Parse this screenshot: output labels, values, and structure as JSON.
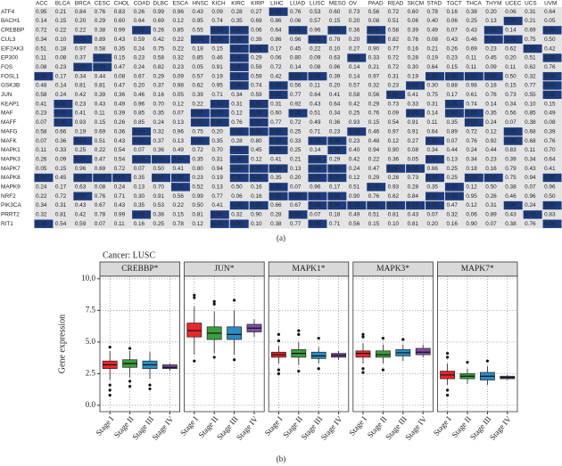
{
  "heatmap": {
    "label": "(a)",
    "columns": [
      "ACC",
      "BLCA",
      "BRCA",
      "CESC",
      "CHOL",
      "COAD",
      "DLBC",
      "ESCA",
      "HNSC",
      "KICH",
      "KIRC",
      "KIRP",
      "LIHC",
      "LUAD",
      "LUSC",
      "MESO",
      "OV",
      "PAAD",
      "READ",
      "SKCM",
      "STAD",
      "TGCT",
      "THCA",
      "THYM",
      "UCEC",
      "UCS",
      "UVM"
    ],
    "rows": [
      {
        "gene": "ATF4",
        "values": [
          "0.95",
          "0.21",
          "0.84",
          "0.76",
          "0.83",
          "0.26",
          "0.99",
          "0.96",
          "0.43",
          "0.09",
          "0.28",
          "0.27",
          "0.00",
          "0.76",
          "0.53",
          "0.60",
          "0.73",
          "0.56",
          "0.72",
          "0.60",
          "0.78",
          "0.16",
          "0.38",
          "0.20",
          "0.06",
          "0.31",
          "0.64"
        ]
      },
      {
        "gene": "BACH1",
        "values": [
          "0.14",
          "0.15",
          "0.20",
          "0.29",
          "0.60",
          "0.64",
          "0.69",
          "0.12",
          "0.95",
          "0.74",
          "0.35",
          "0.69",
          "0.86",
          "0.06",
          "0.57",
          "0.15",
          "0.20",
          "0.08",
          "0.51",
          "0.06",
          "0.40",
          "0.06",
          "0.25",
          "0.13",
          "0.00",
          "0.21",
          "0.05"
        ]
      },
      {
        "gene": "CREBBP",
        "values": [
          "0.72",
          "0.22",
          "0.22",
          "0.38",
          "0.99",
          "0.02",
          "0.26",
          "0.85",
          "0.55",
          "0.03",
          "0.00",
          "0.06",
          "0.64",
          "0.00",
          "0.96",
          "0.01",
          "0.36",
          "0.00",
          "0.58",
          "0.39",
          "0.49",
          "0.07",
          "0.43",
          "0.00",
          "0.14",
          "0.69",
          "0.00"
        ]
      },
      {
        "gene": "CUL3",
        "values": [
          "0.34",
          "0.10",
          "0.03",
          "0.89",
          "0.43",
          "0.59",
          "0.42",
          "0.22",
          "0.04",
          "0.00",
          "0.00",
          "0.39",
          "0.86",
          "0.96",
          "0.02",
          "0.78",
          "0.20",
          "0.00",
          "0.82",
          "0.76",
          "0.08",
          "0.43",
          "0.46",
          "0.00",
          "0.00",
          "0.75",
          "0.50"
        ]
      },
      {
        "gene": "EIF2AK3",
        "values": [
          "0.51",
          "0.18",
          "0.97",
          "0.58",
          "0.35",
          "0.24",
          "0.75",
          "0.22",
          "0.18",
          "0.15",
          "0.00",
          "0.00",
          "0.17",
          "0.45",
          "0.22",
          "0.10",
          "0.27",
          "0.90",
          "0.77",
          "0.16",
          "0.21",
          "0.26",
          "0.69",
          "0.23",
          "0.62",
          "0.00",
          "0.42"
        ]
      },
      {
        "gene": "EP300",
        "values": [
          "0.11",
          "0.08",
          "0.37",
          "0.02",
          "0.15",
          "0.23",
          "0.58",
          "0.32",
          "0.85",
          "0.46",
          "0.00",
          "0.29",
          "0.06",
          "0.80",
          "0.09",
          "0.63",
          "0.00",
          "0.33",
          "0.72",
          "0.28",
          "0.19",
          "0.23",
          "0.11",
          "0.45",
          "0.20",
          "0.51",
          "0.00"
        ]
      },
      {
        "gene": "FOS",
        "values": [
          "0.08",
          "0.23",
          "0.00",
          "0.00",
          "0.47",
          "0.24",
          "0.82",
          "0.23",
          "0.05",
          "0.91",
          "0.00",
          "0.59",
          "0.72",
          "0.14",
          "0.08",
          "0.96",
          "0.14",
          "0.21",
          "0.72",
          "0.30",
          "0.64",
          "0.15",
          "0.11",
          "0.09",
          "0.11",
          "0.62",
          "0.76"
        ]
      },
      {
        "gene": "FOSL1",
        "values": [
          "0.00",
          "0.17",
          "0.34",
          "0.44",
          "0.08",
          "0.67",
          "0.29",
          "0.09",
          "0.57",
          "0.19",
          "0.00",
          "0.59",
          "0.42",
          "0.00",
          "0.00",
          "0.39",
          "0.14",
          "0.97",
          "0.31",
          "0.19",
          "0.00",
          "0.00",
          "0.00",
          "0.00",
          "0.50",
          "0.32",
          "0.00"
        ]
      },
      {
        "gene": "GSK3B",
        "values": [
          "0.48",
          "0.14",
          "0.81",
          "0.81",
          "0.47",
          "0.20",
          "0.37",
          "0.98",
          "0.62",
          "0.95",
          "0.00",
          "0.74",
          "0.00",
          "0.56",
          "0.11",
          "0.20",
          "0.57",
          "0.32",
          "0.23",
          "0.00",
          "0.30",
          "0.88",
          "0.98",
          "0.18",
          "0.15",
          "0.77",
          "0.00"
        ]
      },
      {
        "gene": "JUN",
        "values": [
          "0.58",
          "0.24",
          "0.42",
          "0.39",
          "0.36",
          "0.46",
          "0.16",
          "0.05",
          "0.39",
          "0.71",
          "0.34",
          "0.59",
          "0.00",
          "0.77",
          "0.64",
          "0.41",
          "0.58",
          "0.56",
          "0.00",
          "0.41",
          "0.75",
          "0.17",
          "0.61",
          "0.76",
          "0.73",
          "0.55",
          "0.00"
        ]
      },
      {
        "gene": "KEAP1",
        "values": [
          "0.41",
          "0.00",
          "0.23",
          "0.43",
          "0.49",
          "0.96",
          "0.70",
          "0.12",
          "0.22",
          "0.00",
          "0.31",
          "0.00",
          "0.31",
          "0.92",
          "0.43",
          "0.64",
          "0.42",
          "0.29",
          "0.73",
          "0.33",
          "0.31",
          "0.00",
          "0.74",
          "0.14",
          "0.34",
          "0.10",
          "0.15"
        ]
      },
      {
        "gene": "MAF",
        "values": [
          "0.23",
          "0.00",
          "0.41",
          "0.11",
          "0.39",
          "0.85",
          "0.35",
          "0.07",
          "0.00",
          "0.00",
          "0.12",
          "0.00",
          "0.60",
          "0.00",
          "0.51",
          "0.34",
          "0.25",
          "0.76",
          "0.09",
          "0.00",
          "0.14",
          "0.00",
          "0.00",
          "0.35",
          "0.56",
          "0.85",
          "0.49"
        ]
      },
      {
        "gene": "MAFF",
        "values": [
          "0.07",
          "0.00",
          "0.93",
          "0.15",
          "0.26",
          "0.85",
          "0.24",
          "0.13",
          "0.00",
          "0.00",
          "0.76",
          "0.00",
          "0.77",
          "0.72",
          "0.49",
          "0.36",
          "0.93",
          "0.15",
          "0.54",
          "0.91",
          "0.11",
          "0.35",
          "0.00",
          "0.24",
          "0.07",
          "0.38",
          "0.08"
        ]
      },
      {
        "gene": "MAFG",
        "values": [
          "0.58",
          "0.66",
          "0.19",
          "0.69",
          "0.36",
          "0.00",
          "0.32",
          "0.96",
          "0.75",
          "0.20",
          "0.00",
          "0.00",
          "0.00",
          "0.25",
          "0.71",
          "0.23",
          "0.00",
          "0.46",
          "0.97",
          "0.91",
          "0.64",
          "0.89",
          "0.72",
          "0.12",
          "0.00",
          "0.68",
          "0.39"
        ]
      },
      {
        "gene": "MAFK",
        "values": [
          "0.07",
          "0.36",
          "0.03",
          "0.51",
          "0.43",
          "0.00",
          "0.37",
          "0.13",
          "0.00",
          "0.35",
          "0.28",
          "0.80",
          "0.00",
          "0.33",
          "0.00",
          "0.00",
          "0.23",
          "0.48",
          "0.12",
          "0.27",
          "0.00",
          "0.07",
          "0.76",
          "0.92",
          "0.00",
          "0.68",
          "0.76"
        ]
      },
      {
        "gene": "MAPK1",
        "values": [
          "0.11",
          "0.33",
          "0.25",
          "0.22",
          "0.54",
          "0.07",
          "0.36",
          "0.49",
          "0.72",
          "0.70",
          "0.00",
          "0.45",
          "0.00",
          "0.25",
          "0.14",
          "0.00",
          "0.40",
          "0.94",
          "0.90",
          "0.08",
          "0.34",
          "0.44",
          "0.24",
          "0.44",
          "0.83",
          "0.11",
          "0.70"
        ]
      },
      {
        "gene": "MAPK3",
        "values": [
          "0.26",
          "0.09",
          "0.00",
          "0.47",
          "0.54",
          "0.00",
          "0.00",
          "0.00",
          "0.35",
          "0.31",
          "0.00",
          "0.12",
          "0.41",
          "0.21",
          "0.00",
          "0.29",
          "0.42",
          "0.22",
          "0.36",
          "0.05",
          "0.00",
          "0.13",
          "0.34",
          "0.23",
          "0.39",
          "0.34",
          "0.64"
        ]
      },
      {
        "gene": "MAPK7",
        "values": [
          "0.05",
          "0.15",
          "0.96",
          "0.69",
          "0.72",
          "0.07",
          "0.50",
          "0.41",
          "0.80",
          "0.94",
          "0.00",
          "0.00",
          "0.00",
          "0.13",
          "0.00",
          "0.00",
          "0.24",
          "0.47",
          "0.00",
          "0.00",
          "0.66",
          "0.25",
          "0.18",
          "0.16",
          "0.79",
          "0.43",
          "0.41"
        ]
      },
      {
        "gene": "MAPK8",
        "values": [
          "0.00",
          "0.45",
          "0.00",
          "0.00",
          "0.00",
          "0.35",
          "0.00",
          "0.00",
          "0.23",
          "0.19",
          "0.00",
          "0.00",
          "0.35",
          "0.20",
          "0.00",
          "0.00",
          "0.12",
          "0.29",
          "0.28",
          "0.73",
          "0.00",
          "0.25",
          "0.00",
          "0.00",
          "0.75",
          "0.94",
          "0.00"
        ]
      },
      {
        "gene": "MAPK9",
        "values": [
          "0.24",
          "0.17",
          "0.63",
          "0.08",
          "0.24",
          "0.13",
          "0.70",
          "0.02",
          "0.52",
          "0.13",
          "0.50",
          "0.16",
          "0.00",
          "0.07",
          "0.96",
          "0.17",
          "0.51",
          "0.00",
          "0.93",
          "0.28",
          "0.35",
          "0.00",
          "0.12",
          "0.50",
          "0.38",
          "0.07",
          "0.96"
        ]
      },
      {
        "gene": "NRF2",
        "values": [
          "0.22",
          "0.72",
          "0.00",
          "0.76",
          "0.71",
          "0.30",
          "0.91",
          "0.56",
          "0.99",
          "0.77",
          "0.06",
          "0.16",
          "0.00",
          "0.00",
          "0.00",
          "0.00",
          "0.90",
          "0.76",
          "0.62",
          "0.84",
          "0.00",
          "0.00",
          "0.95",
          "0.26",
          "0.46",
          "0.96",
          "0.50"
        ]
      },
      {
        "gene": "PIK3CA",
        "values": [
          "0.34",
          "0.31",
          "0.43",
          "0.67",
          "0.43",
          "0.35",
          "0.53",
          "0.22",
          "0.50",
          "0.41",
          "0.00",
          "0.00",
          "0.66",
          "0.67",
          "0.00",
          "0.00",
          "0.00",
          "0.02",
          "0.00",
          "0.00",
          "0.00",
          "0.47",
          "0.12",
          "0.31",
          "0.00",
          "0.24",
          "0.00"
        ]
      },
      {
        "gene": "PRRT2",
        "values": [
          "0.32",
          "0.81",
          "0.42",
          "0.78",
          "0.99",
          "0.00",
          "0.38",
          "0.15",
          "0.81",
          "0.00",
          "0.32",
          "0.90",
          "0.28",
          "0.00",
          "0.07",
          "0.18",
          "0.49",
          "0.51",
          "0.81",
          "0.43",
          "0.07",
          "0.32",
          "0.06",
          "0.89",
          "0.43",
          "0.00",
          "0.83"
        ]
      },
      {
        "gene": "RIT1",
        "values": [
          "0.00",
          "0.54",
          "0.59",
          "0.07",
          "0.11",
          "0.16",
          "0.25",
          "0.78",
          "0.12",
          "0.00",
          "0.00",
          "0.10",
          "0.38",
          "0.77",
          "0.00",
          "0.71",
          "0.56",
          "0.15",
          "0.10",
          "0.81",
          "0.20",
          "0.16",
          "0.90",
          "0.07",
          "0.38",
          "0.76",
          "0.00"
        ]
      }
    ]
  },
  "chart_data": {
    "type": "box",
    "title": "Cancer: LUSC",
    "ylabel": "Gene expression",
    "panel_label": "(b)",
    "ylim": [
      -0.5,
      10.2
    ],
    "yticks": [
      {
        "value": 0,
        "label": "0.0"
      },
      {
        "value": 2.5,
        "label": "2.5"
      },
      {
        "value": 5,
        "label": "5.0"
      },
      {
        "value": 7.5,
        "label": "7.5"
      },
      {
        "value": 10,
        "label": "10.0"
      }
    ],
    "grid": true,
    "categories": [
      "Stage I",
      "Stage II",
      "Stage III",
      "Stage IV"
    ],
    "colors": [
      "#e8262b",
      "#3b9e3b",
      "#2b8cc4",
      "#7d4fa6"
    ],
    "facets": [
      {
        "title": "CREBBP*",
        "boxes": [
          {
            "min": 2.0,
            "q1": 2.9,
            "median": 3.2,
            "q3": 3.5,
            "max": 4.3,
            "outliers": [
              1.6,
              1.2,
              0.8,
              4.6
            ]
          },
          {
            "min": 2.2,
            "q1": 3.0,
            "median": 3.3,
            "q3": 3.6,
            "max": 4.3,
            "outliers": [
              1.9,
              1.5,
              4.5
            ]
          },
          {
            "min": 2.1,
            "q1": 2.9,
            "median": 3.2,
            "q3": 3.5,
            "max": 4.2,
            "outliers": [
              1.6,
              1.3
            ]
          },
          {
            "min": 2.7,
            "q1": 2.9,
            "median": 3.0,
            "q3": 3.2,
            "max": 3.3,
            "outliers": []
          }
        ]
      },
      {
        "title": "JUN*",
        "boxes": [
          {
            "min": 4.0,
            "q1": 5.4,
            "median": 5.9,
            "q3": 6.5,
            "max": 7.8,
            "outliers": [
              8.7,
              8.5,
              3.5
            ]
          },
          {
            "min": 4.1,
            "q1": 5.2,
            "median": 5.7,
            "q3": 6.2,
            "max": 7.4,
            "outliers": [
              8.2,
              8.0,
              3.8
            ]
          },
          {
            "min": 4.0,
            "q1": 5.2,
            "median": 5.6,
            "q3": 6.2,
            "max": 7.5,
            "outliers": [
              8.3,
              3.6
            ]
          },
          {
            "min": 5.4,
            "q1": 5.8,
            "median": 6.1,
            "q3": 6.4,
            "max": 6.8,
            "outliers": []
          }
        ]
      },
      {
        "title": "MAPK1*",
        "boxes": [
          {
            "min": 3.3,
            "q1": 3.8,
            "median": 4.0,
            "q3": 4.2,
            "max": 4.7,
            "outliers": [
              5.1,
              5.6,
              2.8,
              2.5
            ]
          },
          {
            "min": 3.2,
            "q1": 3.8,
            "median": 4.1,
            "q3": 4.4,
            "max": 5.0,
            "outliers": [
              5.6,
              5.9,
              2.7
            ]
          },
          {
            "min": 3.3,
            "q1": 3.7,
            "median": 3.9,
            "q3": 4.2,
            "max": 4.6,
            "outliers": [
              5.3,
              2.9
            ]
          },
          {
            "min": 3.6,
            "q1": 3.8,
            "median": 3.95,
            "q3": 4.1,
            "max": 4.3,
            "outliers": []
          }
        ]
      },
      {
        "title": "MAPK3*",
        "boxes": [
          {
            "min": 3.3,
            "q1": 3.8,
            "median": 4.1,
            "q3": 4.3,
            "max": 4.9,
            "outliers": [
              5.4,
              5.6,
              2.9,
              2.6
            ]
          },
          {
            "min": 3.3,
            "q1": 3.8,
            "median": 4.0,
            "q3": 4.3,
            "max": 4.8,
            "outliers": [
              5.3,
              2.8
            ]
          },
          {
            "min": 3.5,
            "q1": 3.9,
            "median": 4.15,
            "q3": 4.4,
            "max": 4.8,
            "outliers": [
              5.2
            ]
          },
          {
            "min": 3.8,
            "q1": 4.0,
            "median": 4.2,
            "q3": 4.5,
            "max": 4.8,
            "outliers": []
          }
        ]
      },
      {
        "title": "MAPK7*",
        "boxes": [
          {
            "min": 1.6,
            "q1": 2.1,
            "median": 2.4,
            "q3": 2.7,
            "max": 3.3,
            "outliers": [
              4.1,
              3.8,
              1.2,
              0.8
            ]
          },
          {
            "min": 1.7,
            "q1": 2.1,
            "median": 2.3,
            "q3": 2.5,
            "max": 2.9,
            "outliers": [
              3.4
            ]
          },
          {
            "min": 1.6,
            "q1": 2.0,
            "median": 2.3,
            "q3": 2.6,
            "max": 3.1,
            "outliers": [
              3.5
            ]
          },
          {
            "min": 2.0,
            "q1": 2.1,
            "median": 2.2,
            "q3": 2.3,
            "max": 2.4,
            "outliers": []
          }
        ]
      }
    ]
  }
}
